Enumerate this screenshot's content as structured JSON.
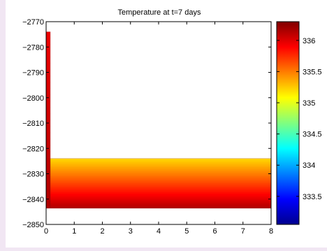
{
  "chart_data": {
    "type": "heatmap",
    "title": "Temperature at t=7 days",
    "xlabel": "",
    "ylabel": "",
    "xlim": [
      0,
      8
    ],
    "ylim": [
      -2850,
      -2770
    ],
    "x_ticks": [
      "0",
      "1",
      "2",
      "3",
      "4",
      "5",
      "6",
      "7",
      "8"
    ],
    "y_ticks": [
      "-2770",
      "-2780",
      "-2790",
      "-2800",
      "-2810",
      "-2820",
      "-2830",
      "-2840",
      "-2850"
    ],
    "colorbar": {
      "range": [
        333.05,
        336.3
      ],
      "ticks": [
        "333.5",
        "334",
        "334.5",
        "335",
        "335.5",
        "336"
      ],
      "colormap": "jet"
    },
    "regions": [
      {
        "name": "vertical-column",
        "x_range": [
          0,
          0.15
        ],
        "y_range": [
          -2843.5,
          -2774
        ],
        "value_top": 335.95,
        "value_bottom": 336.15
      },
      {
        "name": "horizontal-layer",
        "x_range": [
          0.15,
          8
        ],
        "y_range": [
          -2843.5,
          -2824
        ],
        "value_top": 335.2,
        "value_bottom": 336.15
      }
    ],
    "grid": false,
    "legend": "colorbar-right"
  }
}
